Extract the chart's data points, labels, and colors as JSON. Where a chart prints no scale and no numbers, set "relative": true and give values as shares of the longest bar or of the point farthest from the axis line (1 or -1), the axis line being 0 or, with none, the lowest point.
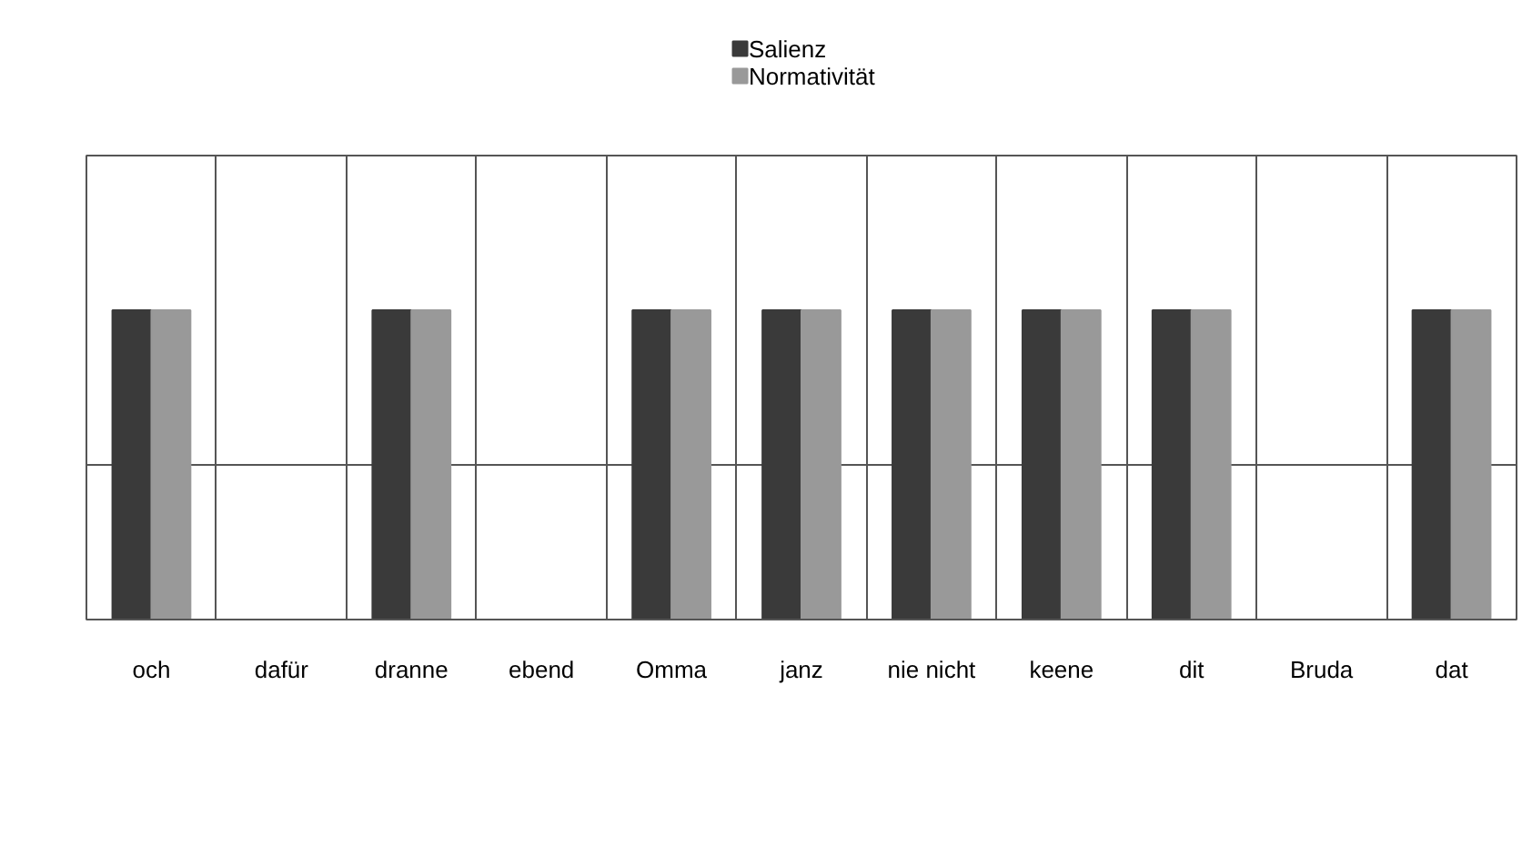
{
  "chart_data": {
    "type": "bar",
    "relative": true,
    "categories": [
      "och",
      "dafür",
      "dranne",
      "ebend",
      "Omma",
      "janz",
      "nie nicht",
      "keene",
      "dit",
      "Bruda",
      "dat"
    ],
    "series": [
      {
        "name": "Salienz",
        "color": "#3a3a3a",
        "values": [
          1,
          0,
          1,
          0,
          1,
          1,
          1,
          1,
          1,
          0,
          1
        ]
      },
      {
        "name": "Normativität",
        "color": "#999999",
        "values": [
          1,
          0,
          1,
          0,
          1,
          1,
          1,
          1,
          1,
          0,
          1
        ]
      }
    ],
    "grid": true,
    "legend": "top"
  }
}
